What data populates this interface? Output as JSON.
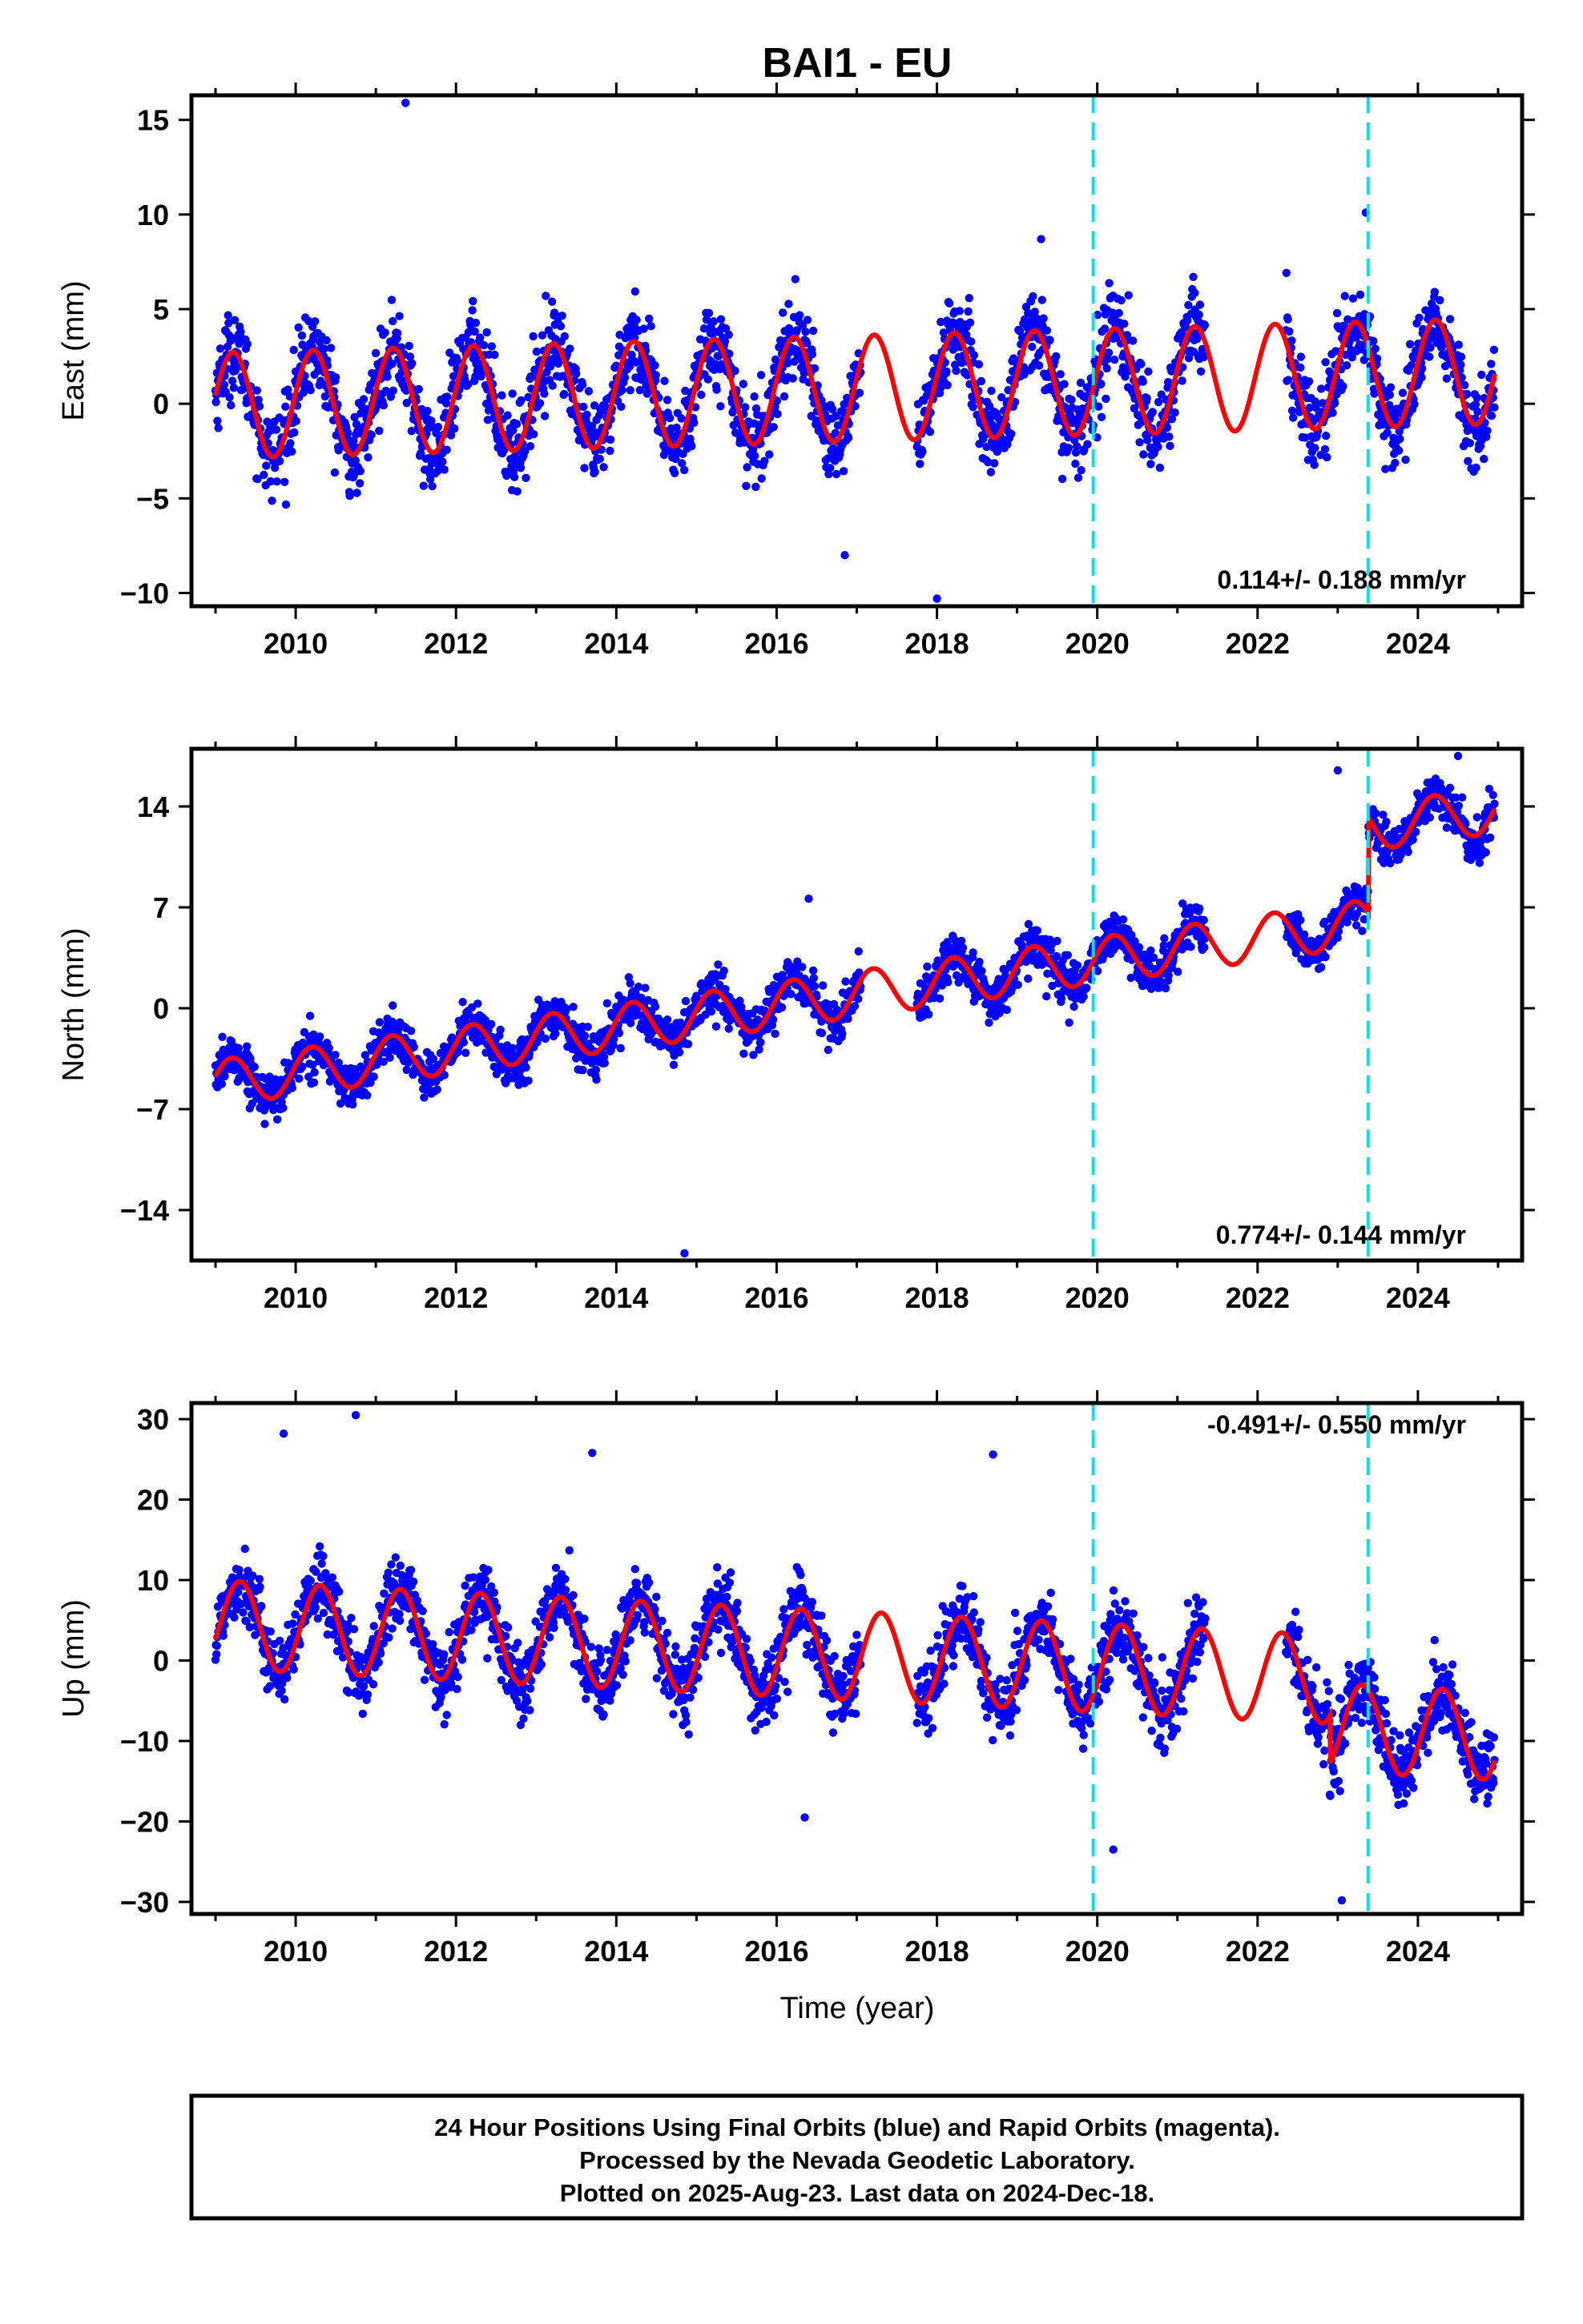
{
  "title": "BAI1 - EU",
  "xlabel": "Time (year)",
  "caption": [
    "24 Hour Positions Using Final Orbits (blue) and Rapid Orbits (magenta).",
    "Processed by the Nevada Geodetic Laboratory.",
    "Plotted on 2025-Aug-23. Last data on 2024-Dec-18."
  ],
  "colors": {
    "points": "#0000ff",
    "model": "#ff0000",
    "events": "#00e5e5",
    "frame": "#000000"
  },
  "chart_data": [
    {
      "type": "scatter",
      "ylabel": "East (mm)",
      "rate_label": "0.114+/- 0.188 mm/yr",
      "xlim": [
        2008.7,
        2025.3
      ],
      "ylim": [
        -10.7,
        16.3
      ],
      "xticks": [
        2010,
        2012,
        2014,
        2016,
        2018,
        2020,
        2022,
        2024
      ],
      "yticks": [
        -10,
        -5,
        0,
        5,
        10,
        15
      ],
      "ytick_labels": [
        "−10",
        "−5",
        "0",
        "5",
        "10",
        "15"
      ],
      "event_lines": [
        2019.95,
        2023.38
      ],
      "data_start": 2009.0,
      "data_end": 2024.96,
      "gaps": [
        [
          2017.05,
          2017.75
        ],
        [
          2021.35,
          2022.35
        ]
      ],
      "rate": 0.114,
      "offset": -0.1,
      "seasonal_amplitude": 2.8,
      "seasonal_phase": 0.2,
      "scatter_sd": 2.0,
      "offsets": [],
      "outliers": [
        [
          2011.37,
          15.9
        ],
        [
          2018.0,
          -10.3
        ],
        [
          2016.85,
          -8.0
        ],
        [
          2019.3,
          8.7
        ],
        [
          2023.35,
          10.1
        ]
      ]
    },
    {
      "type": "scatter",
      "ylabel": "North (mm)",
      "rate_label": "0.774+/- 0.144 mm/yr",
      "xlim": [
        2008.7,
        2025.3
      ],
      "ylim": [
        -17.5,
        18.0
      ],
      "xticks": [
        2010,
        2012,
        2014,
        2016,
        2018,
        2020,
        2022,
        2024
      ],
      "yticks": [
        -14,
        -7,
        0,
        7,
        14
      ],
      "ytick_labels": [
        "−14",
        "−7",
        "0",
        "7",
        "14"
      ],
      "event_lines": [
        2019.95,
        2023.38
      ],
      "data_start": 2009.0,
      "data_end": 2024.96,
      "gaps": [
        [
          2017.05,
          2017.75
        ],
        [
          2021.35,
          2022.35
        ]
      ],
      "rate": 0.774,
      "offset": -5.2,
      "seasonal_amplitude": 1.6,
      "seasonal_phase": 0.3,
      "scatter_sd": 1.4,
      "offsets": [
        [
          2023.38,
          6.6
        ]
      ],
      "outliers": [
        [
          2014.85,
          -17.0
        ],
        [
          2023.0,
          16.5
        ],
        [
          2024.5,
          17.5
        ],
        [
          2016.4,
          7.6
        ]
      ]
    },
    {
      "type": "scatter",
      "ylabel": "Up (mm)",
      "rate_label": "-0.491+/- 0.550 mm/yr",
      "xlim": [
        2008.7,
        2025.3
      ],
      "ylim": [
        -31.5,
        32.0
      ],
      "xticks": [
        2010,
        2012,
        2014,
        2016,
        2018,
        2020,
        2022,
        2024
      ],
      "yticks": [
        -30,
        -20,
        -10,
        0,
        10,
        20,
        30
      ],
      "ytick_labels": [
        "−30",
        "−20",
        "−10",
        "0",
        "10",
        "20",
        "30"
      ],
      "event_lines": [
        2019.95,
        2023.38
      ],
      "data_start": 2009.0,
      "data_end": 2024.96,
      "gaps": [
        [
          2017.05,
          2017.75
        ],
        [
          2021.35,
          2022.35
        ]
      ],
      "rate": -0.491,
      "offset": 4.5,
      "seasonal_amplitude": 5.5,
      "seasonal_phase": -0.35,
      "scatter_sd": 4.0,
      "offsets": [
        [
          2022.9,
          -6.0
        ]
      ],
      "outliers": [
        [
          2010.75,
          30.5
        ],
        [
          2009.85,
          28.2
        ],
        [
          2013.7,
          25.8
        ],
        [
          2018.7,
          25.6
        ],
        [
          2023.05,
          -29.8
        ],
        [
          2016.35,
          -19.5
        ],
        [
          2020.2,
          -23.5
        ]
      ]
    }
  ]
}
